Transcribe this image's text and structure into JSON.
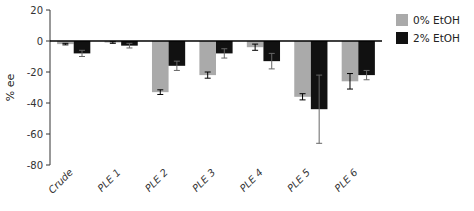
{
  "chart_data": {
    "type": "bar",
    "ylabel": "% ee",
    "categories": [
      "Crude",
      "PLE 1",
      "PLE 2",
      "PLE 3",
      "PLE 4",
      "PLE 5",
      "PLE 6"
    ],
    "series": [
      {
        "name": "0% EtOH",
        "color": "#aaaaaa",
        "values": [
          -2,
          -1,
          -33,
          -22,
          -4,
          -36,
          -26
        ],
        "errors": [
          0.5,
          0.5,
          1.5,
          2,
          2,
          2,
          5
        ]
      },
      {
        "name": "2% EtOH",
        "color": "#111111",
        "values": [
          -8,
          -3,
          -16,
          -8,
          -13,
          -44,
          -22
        ],
        "errors": [
          2,
          1.5,
          3,
          3,
          5,
          22,
          3
        ]
      }
    ],
    "ylim": [
      -80,
      20
    ],
    "yticks": [
      -80,
      -60,
      -40,
      -20,
      0,
      20
    ],
    "grid": false,
    "legend": "right"
  }
}
